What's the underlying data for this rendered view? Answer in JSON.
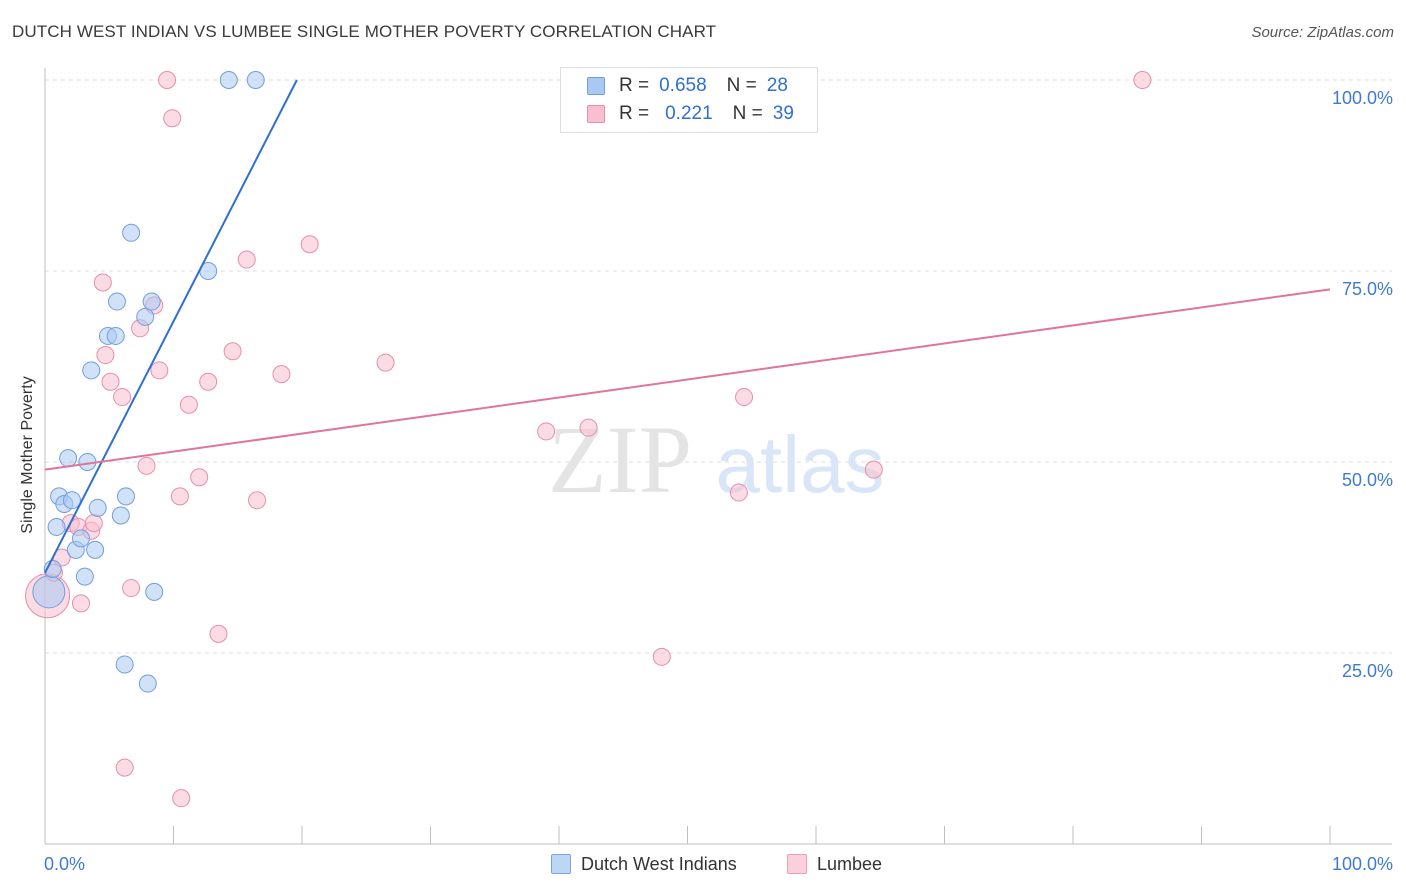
{
  "header": {
    "title": "DUTCH WEST INDIAN VS LUMBEE SINGLE MOTHER POVERTY CORRELATION CHART",
    "source": "Source: ZipAtlas.com"
  },
  "watermark": {
    "zip": "ZIP",
    "atlas": "atlas"
  },
  "colors": {
    "blue_fill": "#a9c9f3",
    "blue_stroke": "#6f9fe0",
    "blue_line": "#2f6fcf",
    "pink_fill": "#f7bfd0",
    "pink_stroke": "#e88ea9",
    "pink_line": "#e0759b",
    "axis_label": "#3f7ad0"
  },
  "legend": {
    "rows": [
      {
        "r_label": "R =",
        "r_value": "0.658",
        "n_label": "N =",
        "n_value": "28"
      },
      {
        "r_label": "R =",
        "r_value": "0.221",
        "n_label": "N =",
        "n_value": "39"
      }
    ]
  },
  "bottom_legend": [
    {
      "label": "Dutch West Indians"
    },
    {
      "label": "Lumbee"
    }
  ],
  "chart_data": {
    "type": "scatter",
    "title": "DUTCH WEST INDIAN VS LUMBEE SINGLE MOTHER POVERTY CORRELATION CHART",
    "xlabel": "",
    "ylabel": "Single Mother Poverty",
    "xlim": [
      0,
      100
    ],
    "ylim": [
      0,
      100
    ],
    "x_tick_labels": [
      "0.0%",
      "100.0%"
    ],
    "y_tick_labels": [
      "25.0%",
      "50.0%",
      "75.0%",
      "100.0%"
    ],
    "y_ticks": [
      25,
      50,
      75,
      100
    ],
    "grid": true,
    "series": [
      {
        "name": "Dutch West Indians",
        "r": 0.658,
        "n": 28,
        "trend": {
          "x0": 0,
          "y0": 35.5,
          "x1": 19.6,
          "y1": 100
        },
        "points": [
          {
            "x": 0.3,
            "y": 33.0,
            "big": true
          },
          {
            "x": 0.6,
            "y": 36.0
          },
          {
            "x": 0.9,
            "y": 41.5
          },
          {
            "x": 1.1,
            "y": 45.5
          },
          {
            "x": 1.5,
            "y": 44.5
          },
          {
            "x": 1.8,
            "y": 50.5
          },
          {
            "x": 2.1,
            "y": 45.0
          },
          {
            "x": 2.4,
            "y": 38.5
          },
          {
            "x": 2.8,
            "y": 40.0
          },
          {
            "x": 3.1,
            "y": 35.0
          },
          {
            "x": 3.3,
            "y": 50.0
          },
          {
            "x": 3.6,
            "y": 62.0
          },
          {
            "x": 3.9,
            "y": 38.5
          },
          {
            "x": 4.1,
            "y": 44.0
          },
          {
            "x": 5.6,
            "y": 71.0
          },
          {
            "x": 4.9,
            "y": 66.5
          },
          {
            "x": 5.5,
            "y": 66.5
          },
          {
            "x": 5.9,
            "y": 43.0
          },
          {
            "x": 6.3,
            "y": 45.5
          },
          {
            "x": 6.7,
            "y": 80.0
          },
          {
            "x": 7.8,
            "y": 69.0
          },
          {
            "x": 8.3,
            "y": 71.0
          },
          {
            "x": 8.5,
            "y": 33.0
          },
          {
            "x": 6.2,
            "y": 23.5
          },
          {
            "x": 8.0,
            "y": 21.0
          },
          {
            "x": 12.7,
            "y": 75.0
          },
          {
            "x": 14.3,
            "y": 100.0
          },
          {
            "x": 16.4,
            "y": 100.0
          }
        ]
      },
      {
        "name": "Lumbee",
        "r": 0.221,
        "n": 39,
        "trend": {
          "x0": 0,
          "y0": 49.0,
          "x1": 100,
          "y1": 72.6
        },
        "points": [
          {
            "x": 0.2,
            "y": 32.5,
            "big": true
          },
          {
            "x": 0.7,
            "y": 35.5
          },
          {
            "x": 1.3,
            "y": 37.5
          },
          {
            "x": 2.0,
            "y": 42.0
          },
          {
            "x": 2.6,
            "y": 41.5
          },
          {
            "x": 2.8,
            "y": 31.5
          },
          {
            "x": 3.6,
            "y": 41.0
          },
          {
            "x": 3.8,
            "y": 42.0
          },
          {
            "x": 4.5,
            "y": 73.5
          },
          {
            "x": 4.7,
            "y": 64.0
          },
          {
            "x": 5.1,
            "y": 60.5
          },
          {
            "x": 6.0,
            "y": 58.5
          },
          {
            "x": 6.2,
            "y": 10.0
          },
          {
            "x": 6.7,
            "y": 33.5
          },
          {
            "x": 7.4,
            "y": 67.5
          },
          {
            "x": 7.9,
            "y": 49.5
          },
          {
            "x": 8.5,
            "y": 70.5
          },
          {
            "x": 8.9,
            "y": 62.0
          },
          {
            "x": 9.5,
            "y": 100.0
          },
          {
            "x": 9.9,
            "y": 95.0
          },
          {
            "x": 10.5,
            "y": 45.5
          },
          {
            "x": 10.6,
            "y": 6.0
          },
          {
            "x": 11.2,
            "y": 57.5
          },
          {
            "x": 12.0,
            "y": 48.0
          },
          {
            "x": 12.7,
            "y": 60.5
          },
          {
            "x": 13.5,
            "y": 27.5
          },
          {
            "x": 14.6,
            "y": 64.5
          },
          {
            "x": 15.7,
            "y": 76.5
          },
          {
            "x": 16.5,
            "y": 45.0
          },
          {
            "x": 18.4,
            "y": 61.5
          },
          {
            "x": 20.6,
            "y": 78.5
          },
          {
            "x": 26.5,
            "y": 63.0
          },
          {
            "x": 39.0,
            "y": 54.0
          },
          {
            "x": 42.3,
            "y": 54.5
          },
          {
            "x": 48.0,
            "y": 24.5
          },
          {
            "x": 54.0,
            "y": 46.0
          },
          {
            "x": 54.4,
            "y": 58.5
          },
          {
            "x": 64.5,
            "y": 49.0
          },
          {
            "x": 85.4,
            "y": 100.0
          }
        ]
      }
    ]
  }
}
